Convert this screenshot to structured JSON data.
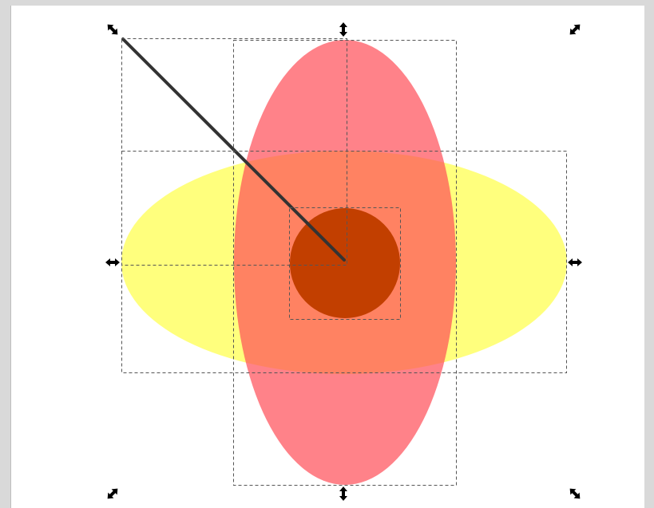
{
  "app": {
    "type": "vector-editor-canvas",
    "tool_state": "selection-scale-handles"
  },
  "canvas": {
    "background": "#ffffff",
    "frame_color": "#d9d9d9"
  },
  "objects": [
    {
      "name": "yellow-horizontal-ellipse",
      "color": "#ffff66",
      "opacity": 0.85
    },
    {
      "name": "red-vertical-ellipse",
      "color": "#ff4d57",
      "opacity": 0.7
    },
    {
      "name": "dark-orange-circle",
      "color": "#c23f00"
    },
    {
      "name": "dark-gray-line",
      "color": "#333333"
    }
  ],
  "selection": {
    "bounding_box_style": "dashed",
    "handles": [
      "scale-nw-icon",
      "scale-n-icon",
      "scale-ne-icon",
      "scale-w-icon",
      "scale-e-icon",
      "scale-sw-icon",
      "scale-s-icon",
      "scale-se-icon"
    ]
  }
}
